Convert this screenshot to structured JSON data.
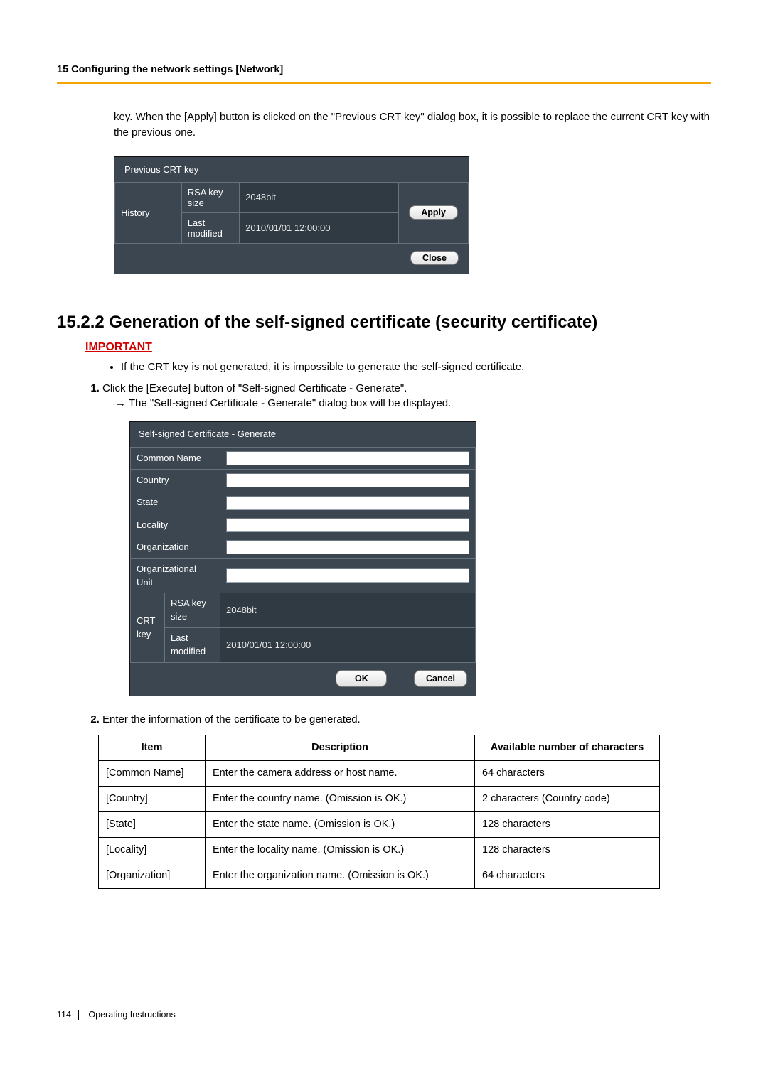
{
  "header": "15 Configuring the network settings [Network]",
  "intro_para": "key. When the [Apply] button is clicked on the \"Previous CRT key\" dialog box, it is possible to replace the current CRT key with the previous one.",
  "prev_dialog": {
    "title": "Previous CRT key",
    "history_label": "History",
    "rsa_label": "RSA key size",
    "rsa_value": "2048bit",
    "last_label": "Last modified",
    "last_value": "2010/01/01 12:00:00",
    "apply_label": "Apply",
    "close_label": "Close"
  },
  "section_title": "15.2.2  Generation of the self-signed certificate (security certificate)",
  "important_label": "IMPORTANT",
  "important_bullet": "If the CRT key is not generated, it is impossible to generate the self-signed certificate.",
  "step1_a": "Click the [Execute] button of \"Self-signed Certificate - Generate\".",
  "step1_b": "→  The \"Self-signed Certificate - Generate\" dialog box will be displayed.",
  "cert_dialog": {
    "title": "Self-signed Certificate - Generate",
    "rows": [
      {
        "label": "Common Name"
      },
      {
        "label": "Country"
      },
      {
        "label": "State"
      },
      {
        "label": "Locality"
      },
      {
        "label": "Organization"
      },
      {
        "label": "Organizational Unit"
      }
    ],
    "crt_label": "CRT key",
    "rsa_label": "RSA key size",
    "rsa_value": "2048bit",
    "last_label": "Last modified",
    "last_value": "2010/01/01 12:00:00",
    "ok_label": "OK",
    "cancel_label": "Cancel"
  },
  "step2_lead": "Enter the information of the certificate to be generated.",
  "info_table": {
    "headers": [
      "Item",
      "Description",
      "Available number of characters"
    ],
    "rows": [
      [
        "[Common Name]",
        "Enter the camera address or host name.",
        "64 characters"
      ],
      [
        "[Country]",
        "Enter the country name. (Omission is OK.)",
        "2 characters (Country code)"
      ],
      [
        "[State]",
        "Enter the state name. (Omission is OK.)",
        "128 characters"
      ],
      [
        "[Locality]",
        "Enter the locality name. (Omission is OK.)",
        "128 characters"
      ],
      [
        "[Organization]",
        "Enter the organization name. (Omission is OK.)",
        "64 characters"
      ]
    ]
  },
  "footer": {
    "page": "114",
    "label": "Operating Instructions"
  }
}
